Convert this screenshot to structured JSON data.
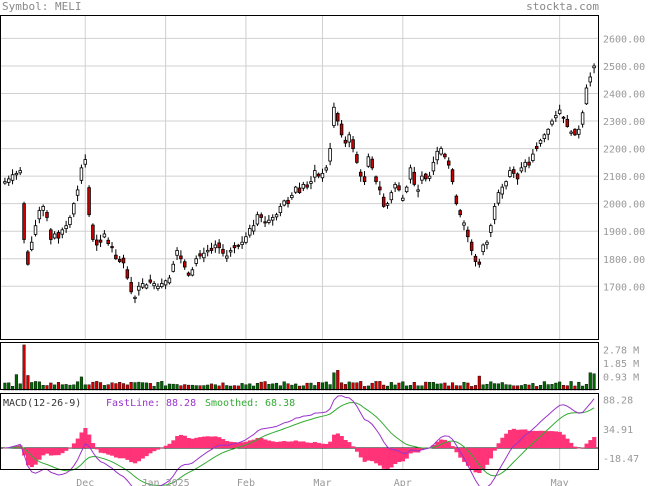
{
  "header": {
    "symbol_label": "Symbol: MELI",
    "site": "stockta.com"
  },
  "colors": {
    "up": "#ffffff",
    "down": "#cc0000",
    "vol_up": "#006600",
    "vol_down": "#cc0000",
    "fast": "#9933cc",
    "smooth": "#33aa33",
    "hist": "#ff3377"
  },
  "chart_data": [
    {
      "type": "candlestick",
      "title": "",
      "x_tick_labels": [
        "Dec",
        "Jan 2025",
        "Feb",
        "Mar",
        "Apr",
        "May"
      ],
      "y_tick_labels": [
        "2600.00",
        "2500.00",
        "2400.00",
        "2300.00",
        "2200.00",
        "2100.00",
        "2000.00",
        "1900.00",
        "1800.00",
        "1700.00"
      ],
      "ylim": [
        1505,
        2685
      ],
      "grid": true,
      "closes": [
        2080,
        2090,
        2105,
        2110,
        2120,
        1870,
        1780,
        1860,
        1920,
        1975,
        1990,
        1950,
        1870,
        1890,
        1875,
        1905,
        1920,
        1950,
        2000,
        2050,
        2130,
        2160,
        1960,
        1870,
        1850,
        1860,
        1890,
        1855,
        1840,
        1800,
        1790,
        1785,
        1730,
        1680,
        1660,
        1700,
        1710,
        1705,
        1715,
        1710,
        1700,
        1710,
        1720,
        1730,
        1780,
        1830,
        1800,
        1770,
        1740,
        1760,
        1800,
        1810,
        1820,
        1830,
        1830,
        1850,
        1840,
        1820,
        1810,
        1830,
        1840,
        1845,
        1860,
        1880,
        1910,
        1920,
        1960,
        1950,
        1930,
        1940,
        1950,
        1960,
        1990,
        2010,
        2000,
        2030,
        2060,
        2040,
        2070,
        2060,
        2080,
        2120,
        2100,
        2110,
        2130,
        2200,
        2350,
        2300,
        2250,
        2220,
        2250,
        2200,
        2150,
        2100,
        2080,
        2170,
        2130,
        2080,
        2050,
        1990,
        2000,
        2040,
        2070,
        2050,
        2020,
        2060,
        2130,
        2070,
        2050,
        2100,
        2090,
        2100,
        2150,
        2190,
        2200,
        2170,
        2140,
        2080,
        2000,
        1960,
        1930,
        1880,
        1830,
        1790,
        1780,
        1850,
        1860,
        1920,
        1990,
        2040,
        2060,
        2080,
        2120,
        2110,
        2090,
        2130,
        2150,
        2140,
        2180,
        2200,
        2230,
        2250,
        2270,
        2300,
        2320,
        2340,
        2310,
        2280,
        2260,
        2250,
        2270,
        2330,
        2420,
        2460,
        2500
      ],
      "series": [
        {
          "name": "Volume",
          "type": "bar",
          "ylim": [
            0,
            3.3
          ],
          "y_tick_labels": [
            "2.78 M",
            "1.85 M",
            "0.93 M"
          ]
        },
        {
          "name": "MACD(12-26-9)",
          "type": "line",
          "ylim": [
            -40,
            100
          ],
          "y_tick_labels": [
            "88.28",
            "34.91",
            "-18.47"
          ],
          "fast_label": "FastLine:",
          "fast_value": "88.28",
          "smooth_label": "Smoothed:",
          "smooth_value": "68.38"
        }
      ]
    }
  ]
}
